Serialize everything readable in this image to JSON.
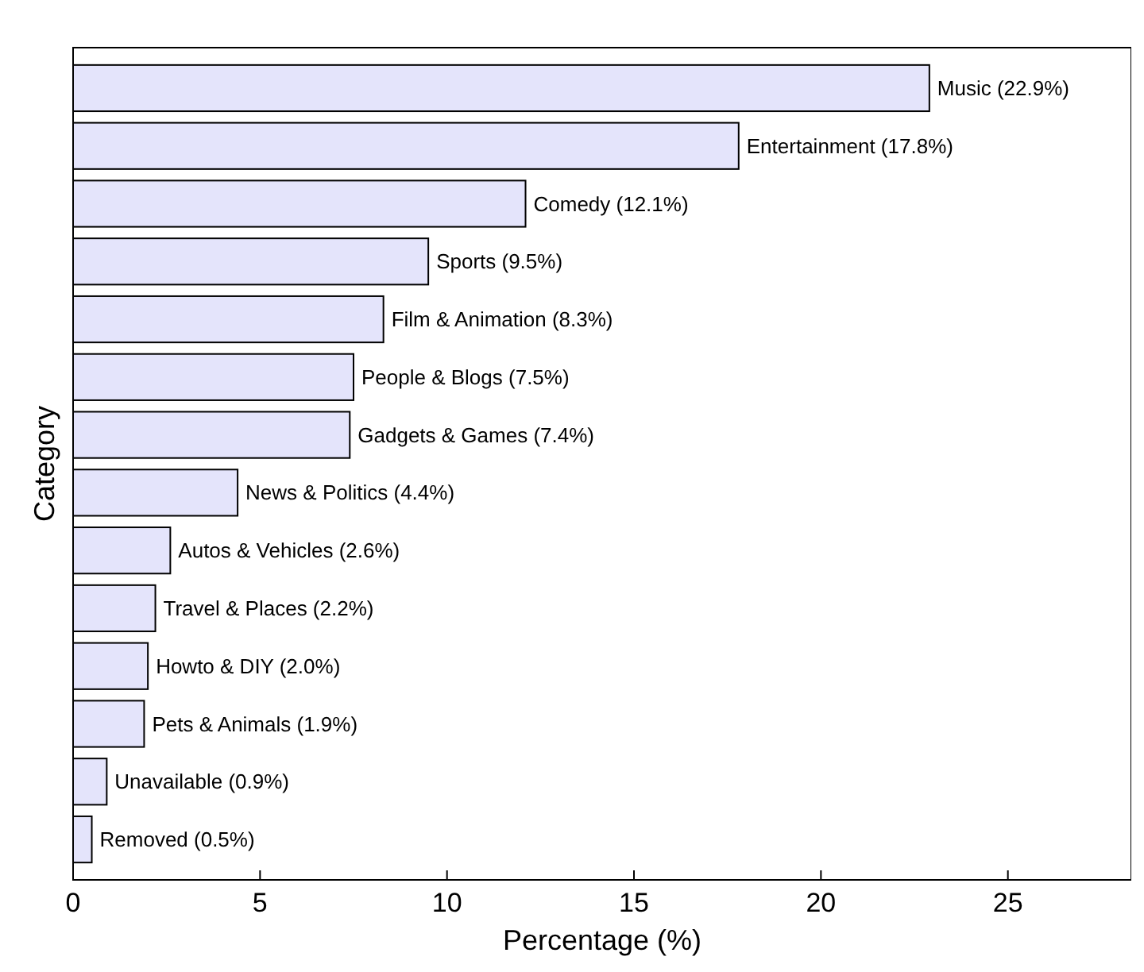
{
  "chart_data": {
    "type": "bar",
    "orientation": "horizontal",
    "ylabel": "Category",
    "xlabel": "Percentage (%)",
    "categories": [
      null,
      null,
      null,
      null,
      null,
      null,
      null,
      null,
      null,
      null,
      null,
      null,
      null,
      null
    ],
    "values": [
      22.9,
      17.8,
      12.1,
      9.5,
      8.3,
      7.5,
      7.4,
      4.4,
      2.6,
      2.2,
      2.0,
      1.9,
      0.9,
      0.5
    ],
    "value_labels": [
      "Music (22.9%)",
      "Entertainment (17.8%)",
      "Comedy (12.1%)",
      "Sports (9.5%)",
      "Film & Animation (8.3%)",
      "People & Blogs (7.5%)",
      "Gadgets & Games (7.4%)",
      "News & Politics (4.4%)",
      "Autos & Vehicles (2.6%)",
      "Travel & Places (2.2%)",
      "Howto & DIY (2.0%)",
      "Pets & Animals (1.9%)",
      "Unavailable (0.9%)",
      "Removed (0.5%)"
    ],
    "color": "#e4e4fb",
    "xlim": [
      0,
      28.3
    ],
    "xticks": [
      0,
      5,
      10,
      15,
      20,
      25
    ],
    "tick_labels": "x",
    "grid": false
  }
}
